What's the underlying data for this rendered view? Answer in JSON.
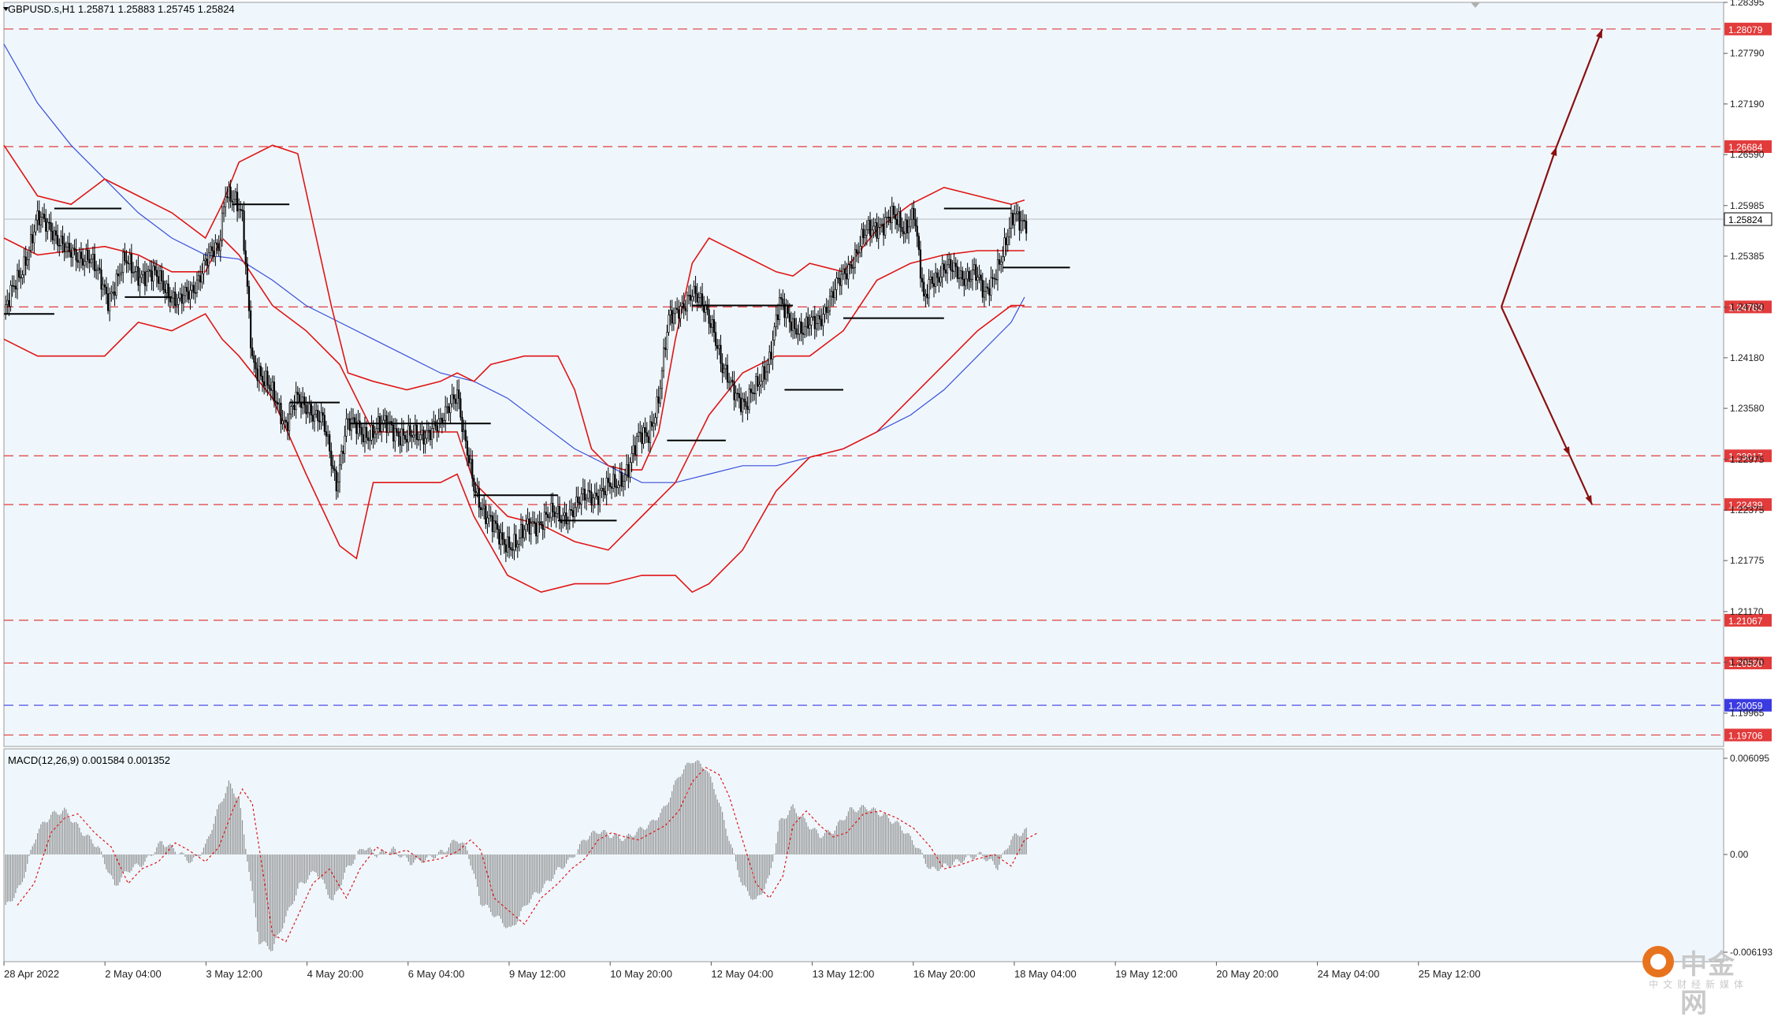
{
  "chart_data": [
    {
      "type": "candlestick",
      "symbol_header": "GBPUSD.s,H1  1.25871 1.25883 1.25745 1.25824",
      "ylim": [
        1.1957,
        1.28395
      ],
      "price_ticks": [
        "1.28395",
        "1.27790",
        "1.27190",
        "1.26590",
        "1.25985",
        "1.25385",
        "1.24780",
        "1.24180",
        "1.23580",
        "1.22975",
        "1.22375",
        "1.21775",
        "1.21170",
        "1.20570",
        "1.19965"
      ],
      "current_price": "1.25824",
      "x_labels": [
        "28 Apr 2022",
        "2 May 04:00",
        "3 May 12:00",
        "4 May 20:00",
        "6 May 04:00",
        "9 May 12:00",
        "10 May 20:00",
        "12 May 04:00",
        "13 May 12:00",
        "16 May 20:00",
        "18 May 04:00",
        "19 May 12:00",
        "20 May 20:00",
        "24 May 04:00",
        "25 May 12:00"
      ],
      "levels": [
        {
          "value": 1.28079,
          "label": "1.28079",
          "color": "#e23b3b"
        },
        {
          "value": 1.26684,
          "label": "1.26684",
          "color": "#e23b3b"
        },
        {
          "value": 1.24783,
          "label": "1.24783",
          "color": "#e23b3b"
        },
        {
          "value": 1.23017,
          "label": "1.23017",
          "color": "#e23b3b"
        },
        {
          "value": 1.22439,
          "label": "1.22439",
          "color": "#e23b3b"
        },
        {
          "value": 1.21067,
          "label": "1.21067",
          "color": "#e23b3b"
        },
        {
          "value": 1.2056,
          "label": "1.20560",
          "color": "#e23b3b"
        },
        {
          "value": 1.20059,
          "label": "1.20059",
          "color": "#3b3be2"
        },
        {
          "value": 1.19706,
          "label": "1.19706",
          "color": "#e23b3b"
        }
      ],
      "close_path": [
        [
          0,
          1.247
        ],
        [
          10,
          1.252
        ],
        [
          20,
          1.258
        ],
        [
          28,
          1.2575
        ],
        [
          38,
          1.254
        ],
        [
          50,
          1.254
        ],
        [
          62,
          1.249
        ],
        [
          72,
          1.253
        ],
        [
          80,
          1.252
        ],
        [
          94,
          1.251
        ],
        [
          104,
          1.248
        ],
        [
          112,
          1.25
        ],
        [
          120,
          1.253
        ],
        [
          128,
          1.255
        ],
        [
          132,
          1.262
        ],
        [
          138,
          1.26
        ],
        [
          142,
          1.258
        ],
        [
          148,
          1.242
        ],
        [
          154,
          1.239
        ],
        [
          162,
          1.237
        ],
        [
          168,
          1.234
        ],
        [
          174,
          1.2365
        ],
        [
          182,
          1.236
        ],
        [
          190,
          1.234
        ],
        [
          198,
          1.227
        ],
        [
          204,
          1.234
        ],
        [
          214,
          1.233
        ],
        [
          220,
          1.233
        ],
        [
          230,
          1.234
        ],
        [
          240,
          1.232
        ],
        [
          250,
          1.233
        ],
        [
          260,
          1.2335
        ],
        [
          266,
          1.237
        ],
        [
          270,
          1.238
        ],
        [
          274,
          1.232
        ],
        [
          280,
          1.2265
        ],
        [
          288,
          1.223
        ],
        [
          296,
          1.22
        ],
        [
          306,
          1.22
        ],
        [
          314,
          1.222
        ],
        [
          324,
          1.223
        ],
        [
          332,
          1.223
        ],
        [
          340,
          1.224
        ],
        [
          348,
          1.2255
        ],
        [
          356,
          1.226
        ],
        [
          364,
          1.2265
        ],
        [
          372,
          1.229
        ],
        [
          378,
          1.232
        ],
        [
          384,
          1.233
        ],
        [
          390,
          1.237
        ],
        [
          396,
          1.246
        ],
        [
          402,
          1.248
        ],
        [
          410,
          1.249
        ],
        [
          418,
          1.248
        ],
        [
          422,
          1.246
        ],
        [
          428,
          1.24
        ],
        [
          436,
          1.238
        ],
        [
          442,
          1.236
        ],
        [
          448,
          1.238
        ],
        [
          456,
          1.242
        ],
        [
          462,
          1.248
        ],
        [
          470,
          1.246
        ],
        [
          476,
          1.245
        ],
        [
          484,
          1.246
        ],
        [
          490,
          1.248
        ],
        [
          496,
          1.25
        ],
        [
          504,
          1.253
        ],
        [
          512,
          1.256
        ],
        [
          520,
          1.2575
        ],
        [
          528,
          1.2585
        ],
        [
          536,
          1.257
        ],
        [
          542,
          1.2595
        ],
        [
          548,
          1.248
        ],
        [
          552,
          1.251
        ],
        [
          560,
          1.2525
        ],
        [
          570,
          1.2515
        ],
        [
          578,
          1.252
        ],
        [
          584,
          1.249
        ],
        [
          590,
          1.252
        ],
        [
          596,
          1.2545
        ],
        [
          602,
          1.2588
        ],
        [
          608,
          1.2582
        ]
      ],
      "ma_path": [
        [
          0,
          1.279
        ],
        [
          20,
          1.272
        ],
        [
          40,
          1.267
        ],
        [
          60,
          1.263
        ],
        [
          80,
          1.259
        ],
        [
          100,
          1.256
        ],
        [
          120,
          1.254
        ],
        [
          140,
          1.2535
        ],
        [
          160,
          1.251
        ],
        [
          180,
          1.248
        ],
        [
          200,
          1.246
        ],
        [
          220,
          1.244
        ],
        [
          240,
          1.242
        ],
        [
          260,
          1.24
        ],
        [
          280,
          1.239
        ],
        [
          300,
          1.237
        ],
        [
          320,
          1.234
        ],
        [
          340,
          1.231
        ],
        [
          360,
          1.229
        ],
        [
          380,
          1.227
        ],
        [
          400,
          1.227
        ],
        [
          420,
          1.228
        ],
        [
          440,
          1.229
        ],
        [
          460,
          1.229
        ],
        [
          480,
          1.23
        ],
        [
          500,
          1.231
        ],
        [
          520,
          1.233
        ],
        [
          540,
          1.235
        ],
        [
          560,
          1.238
        ],
        [
          580,
          1.242
        ],
        [
          600,
          1.246
        ],
        [
          608,
          1.249
        ]
      ],
      "bb_upper": [
        [
          0,
          1.267
        ],
        [
          20,
          1.261
        ],
        [
          40,
          1.26
        ],
        [
          60,
          1.263
        ],
        [
          80,
          1.261
        ],
        [
          100,
          1.259
        ],
        [
          120,
          1.256
        ],
        [
          130,
          1.26
        ],
        [
          140,
          1.265
        ],
        [
          160,
          1.267
        ],
        [
          175,
          1.266
        ],
        [
          185,
          1.257
        ],
        [
          195,
          1.248
        ],
        [
          205,
          1.24
        ],
        [
          220,
          1.239
        ],
        [
          240,
          1.238
        ],
        [
          260,
          1.239
        ],
        [
          270,
          1.24
        ],
        [
          280,
          1.239
        ],
        [
          290,
          1.241
        ],
        [
          310,
          1.242
        ],
        [
          330,
          1.242
        ],
        [
          340,
          1.238
        ],
        [
          350,
          1.231
        ],
        [
          360,
          1.229
        ],
        [
          370,
          1.2285
        ],
        [
          380,
          1.2285
        ],
        [
          390,
          1.233
        ],
        [
          400,
          1.244
        ],
        [
          410,
          1.253
        ],
        [
          420,
          1.256
        ],
        [
          430,
          1.255
        ],
        [
          440,
          1.254
        ],
        [
          460,
          1.252
        ],
        [
          470,
          1.2515
        ],
        [
          480,
          1.253
        ],
        [
          500,
          1.252
        ],
        [
          520,
          1.257
        ],
        [
          540,
          1.26
        ],
        [
          560,
          1.262
        ],
        [
          580,
          1.261
        ],
        [
          600,
          1.26
        ],
        [
          608,
          1.2605
        ]
      ],
      "bb_mid": [
        [
          0,
          1.256
        ],
        [
          20,
          1.254
        ],
        [
          40,
          1.2545
        ],
        [
          60,
          1.255
        ],
        [
          80,
          1.254
        ],
        [
          100,
          1.252
        ],
        [
          120,
          1.252
        ],
        [
          130,
          1.256
        ],
        [
          140,
          1.254
        ],
        [
          160,
          1.248
        ],
        [
          180,
          1.245
        ],
        [
          200,
          1.241
        ],
        [
          220,
          1.233
        ],
        [
          240,
          1.233
        ],
        [
          260,
          1.233
        ],
        [
          270,
          1.233
        ],
        [
          280,
          1.227
        ],
        [
          300,
          1.223
        ],
        [
          320,
          1.222
        ],
        [
          340,
          1.22
        ],
        [
          360,
          1.219
        ],
        [
          380,
          1.223
        ],
        [
          400,
          1.227
        ],
        [
          420,
          1.235
        ],
        [
          440,
          1.24
        ],
        [
          460,
          1.242
        ],
        [
          480,
          1.242
        ],
        [
          500,
          1.245
        ],
        [
          520,
          1.251
        ],
        [
          540,
          1.253
        ],
        [
          560,
          1.254
        ],
        [
          580,
          1.2545
        ],
        [
          600,
          1.2545
        ],
        [
          608,
          1.2545
        ]
      ],
      "bb_lower": [
        [
          0,
          1.244
        ],
        [
          20,
          1.242
        ],
        [
          40,
          1.242
        ],
        [
          60,
          1.242
        ],
        [
          80,
          1.246
        ],
        [
          100,
          1.245
        ],
        [
          120,
          1.247
        ],
        [
          130,
          1.244
        ],
        [
          140,
          1.242
        ],
        [
          160,
          1.237
        ],
        [
          180,
          1.228
        ],
        [
          200,
          1.2195
        ],
        [
          210,
          1.218
        ],
        [
          220,
          1.227
        ],
        [
          240,
          1.227
        ],
        [
          260,
          1.227
        ],
        [
          270,
          1.228
        ],
        [
          280,
          1.223
        ],
        [
          300,
          1.216
        ],
        [
          320,
          1.214
        ],
        [
          340,
          1.215
        ],
        [
          360,
          1.215
        ],
        [
          380,
          1.216
        ],
        [
          400,
          1.216
        ],
        [
          410,
          1.214
        ],
        [
          420,
          1.215
        ],
        [
          440,
          1.219
        ],
        [
          460,
          1.226
        ],
        [
          480,
          1.23
        ],
        [
          500,
          1.231
        ],
        [
          520,
          1.233
        ],
        [
          540,
          1.237
        ],
        [
          560,
          1.241
        ],
        [
          580,
          1.245
        ],
        [
          600,
          1.248
        ],
        [
          608,
          1.248
        ]
      ],
      "hlines": [
        [
          0,
          30,
          1.247
        ],
        [
          30,
          70,
          1.2595
        ],
        [
          72,
          100,
          1.249
        ],
        [
          136,
          170,
          1.26
        ],
        [
          170,
          200,
          1.2365
        ],
        [
          206,
          290,
          1.234
        ],
        [
          280,
          330,
          1.2255
        ],
        [
          330,
          365,
          1.2225
        ],
        [
          395,
          430,
          1.232
        ],
        [
          410,
          470,
          1.248
        ],
        [
          465,
          500,
          1.238
        ],
        [
          500,
          560,
          1.2465
        ],
        [
          560,
          600,
          1.2595
        ],
        [
          595,
          635,
          1.2525
        ]
      ]
    },
    {
      "type": "bar",
      "title": "MACD(12,26,9) 0.001584 0.001352",
      "y_ticks": [
        "0.006095",
        "0.00",
        "-0.006193"
      ],
      "ylim": [
        -0.006193,
        0.006095
      ],
      "macd_path": [
        [
          0,
          -0.0035
        ],
        [
          10,
          -0.002
        ],
        [
          20,
          0.0015
        ],
        [
          28,
          0.0025
        ],
        [
          36,
          0.0028
        ],
        [
          46,
          0.0015
        ],
        [
          56,
          0.0005
        ],
        [
          66,
          -0.002
        ],
        [
          74,
          -0.001
        ],
        [
          84,
          -0.0005
        ],
        [
          94,
          0.0008
        ],
        [
          102,
          0.0003
        ],
        [
          112,
          -0.0005
        ],
        [
          120,
          0.0005
        ],
        [
          128,
          0.003
        ],
        [
          134,
          0.0045
        ],
        [
          140,
          0.0035
        ],
        [
          146,
          -0.001
        ],
        [
          152,
          -0.0055
        ],
        [
          160,
          -0.006
        ],
        [
          168,
          -0.004
        ],
        [
          176,
          -0.002
        ],
        [
          186,
          -0.001
        ],
        [
          196,
          -0.003
        ],
        [
          204,
          -0.001
        ],
        [
          214,
          0.0005
        ],
        [
          222,
          0.0
        ],
        [
          232,
          0.0003
        ],
        [
          242,
          -0.0005
        ],
        [
          252,
          -0.0003
        ],
        [
          262,
          0.0002
        ],
        [
          270,
          0.001
        ],
        [
          276,
          0.0003
        ],
        [
          284,
          -0.003
        ],
        [
          294,
          -0.004
        ],
        [
          302,
          -0.0048
        ],
        [
          312,
          -0.003
        ],
        [
          322,
          -0.002
        ],
        [
          330,
          -0.001
        ],
        [
          338,
          -0.0003
        ],
        [
          346,
          0.001
        ],
        [
          354,
          0.0015
        ],
        [
          362,
          0.0012
        ],
        [
          370,
          0.001
        ],
        [
          378,
          0.0015
        ],
        [
          386,
          0.002
        ],
        [
          394,
          0.003
        ],
        [
          402,
          0.005
        ],
        [
          410,
          0.006
        ],
        [
          418,
          0.0055
        ],
        [
          424,
          0.004
        ],
        [
          432,
          0.001
        ],
        [
          440,
          -0.002
        ],
        [
          448,
          -0.003
        ],
        [
          456,
          -0.0015
        ],
        [
          462,
          0.002
        ],
        [
          470,
          0.003
        ],
        [
          478,
          0.002
        ],
        [
          486,
          0.0012
        ],
        [
          494,
          0.0015
        ],
        [
          504,
          0.0028
        ],
        [
          514,
          0.003
        ],
        [
          524,
          0.0025
        ],
        [
          534,
          0.0018
        ],
        [
          544,
          0.0005
        ],
        [
          552,
          -0.001
        ],
        [
          562,
          -0.0007
        ],
        [
          572,
          -0.0003
        ],
        [
          582,
          0.0
        ],
        [
          592,
          -0.0008
        ],
        [
          600,
          0.001
        ],
        [
          608,
          0.0015
        ]
      ]
    }
  ],
  "watermark": {
    "text": "中金网",
    "sub": "中文财经新媒体"
  }
}
